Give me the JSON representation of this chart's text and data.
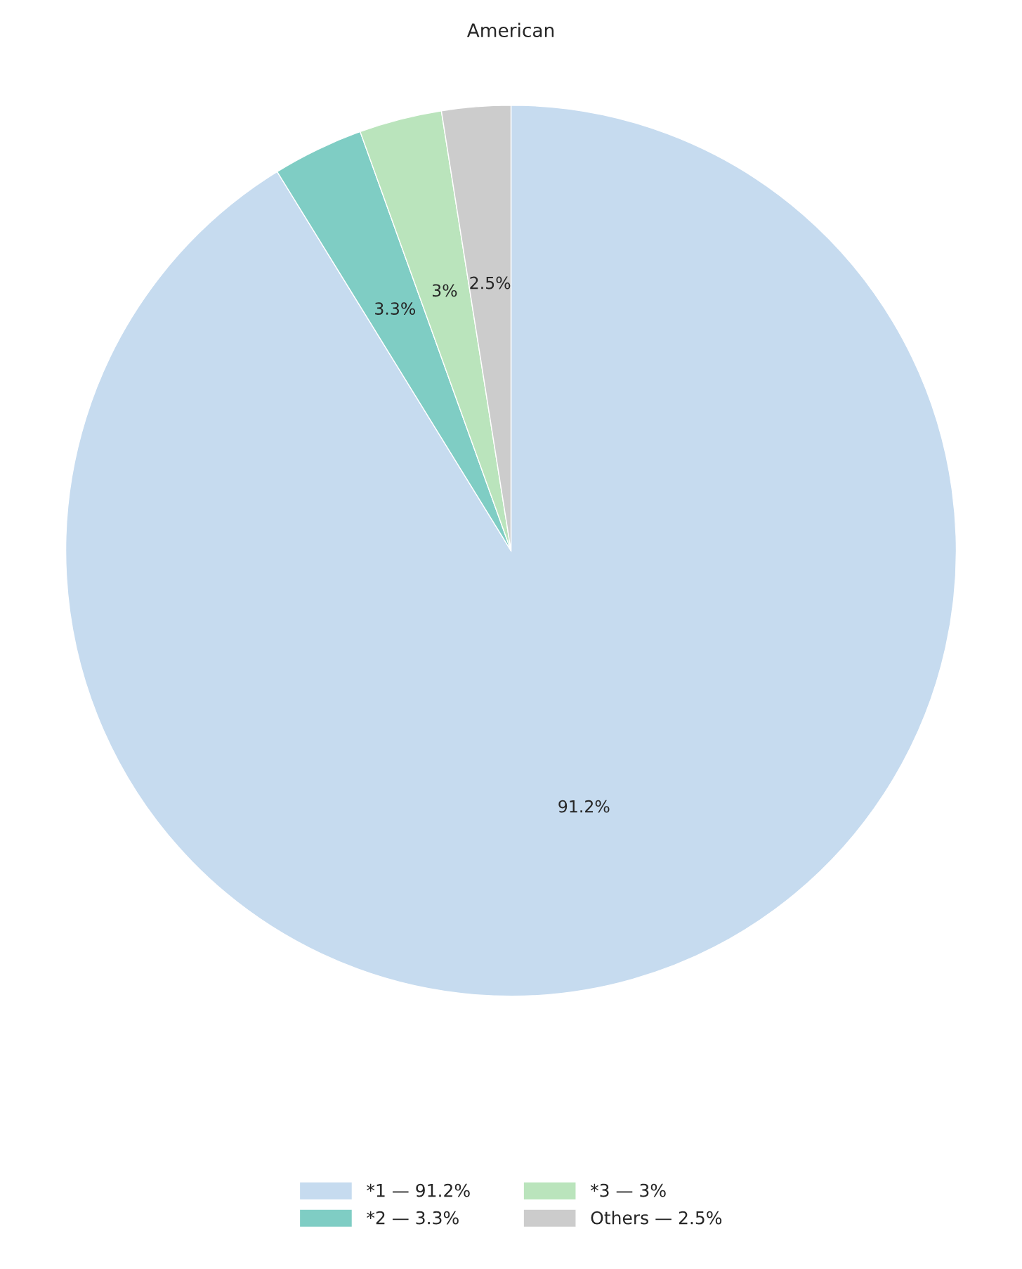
{
  "chart_data": {
    "type": "pie",
    "title": "American",
    "categories": [
      "*1 — 91.2%",
      "*2 — 3.3%",
      "*3 — 3%",
      "Others — 2.5%"
    ],
    "values": [
      91.2,
      3.3,
      3,
      2.5
    ],
    "value_labels": [
      "91.2%",
      "3.3%",
      "3%",
      "2.5%"
    ],
    "colors": [
      "#c6dbef",
      "#7fcdc4",
      "#bae4bc",
      "#cccccc"
    ],
    "legend": "bottom"
  }
}
